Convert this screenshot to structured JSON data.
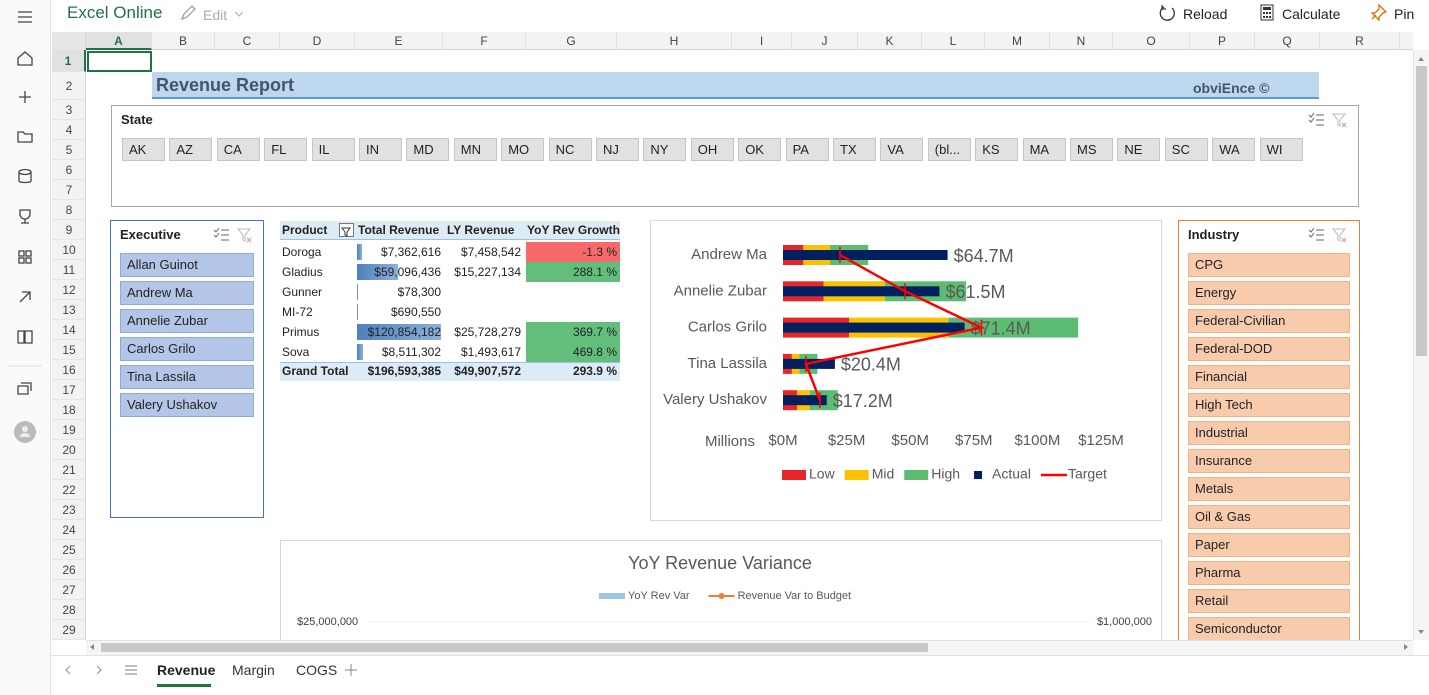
{
  "app": {
    "title": "Excel Online",
    "edit": "Edit"
  },
  "toolbar": [
    "Reload",
    "Calculate",
    "Pin"
  ],
  "columns": [
    "A",
    "B",
    "C",
    "D",
    "E",
    "F",
    "G",
    "H",
    "I",
    "J",
    "K",
    "L",
    "M",
    "N",
    "O",
    "P",
    "Q",
    "R"
  ],
  "rows": [
    1,
    2,
    3,
    4,
    5,
    6,
    7,
    8,
    9,
    10,
    11,
    12,
    13,
    14,
    15,
    16,
    17,
    18,
    19,
    20,
    21,
    22,
    23,
    24,
    25,
    26,
    27,
    28,
    29
  ],
  "report": {
    "title": "Revenue Report",
    "brand": "obviEnce ©"
  },
  "state_slicer": {
    "title": "State",
    "items": [
      "AK",
      "AZ",
      "CA",
      "FL",
      "IL",
      "IN",
      "MD",
      "MN",
      "MO",
      "NC",
      "NJ",
      "NY",
      "OH",
      "OK",
      "PA",
      "TX",
      "VA",
      "(bl...",
      "KS",
      "MA",
      "MS",
      "NE",
      "SC",
      "WA",
      "WI"
    ]
  },
  "executive_slicer": {
    "title": "Executive",
    "items": [
      "Allan Guinot",
      "Andrew Ma",
      "Annelie Zubar",
      "Carlos Grilo",
      "Tina Lassila",
      "Valery Ushakov"
    ]
  },
  "industry_slicer": {
    "title": "Industry",
    "items": [
      "CPG",
      "Energy",
      "Federal-Civilian",
      "Federal-DOD",
      "Financial",
      "High Tech",
      "Industrial",
      "Insurance",
      "Metals",
      "Oil & Gas",
      "Paper",
      "Pharma",
      "Retail",
      "Semiconductor"
    ]
  },
  "pivot": {
    "headers": [
      "Product",
      "Total Revenue",
      "LY Revenue",
      "YoY Rev Growth"
    ],
    "products": [
      "Doroga",
      "Gladius",
      "Gunner",
      "MI-72",
      "Primus",
      "Sova"
    ],
    "total_revenue": [
      7362616,
      59096436,
      78300,
      690550,
      120854182,
      8511302
    ],
    "total_revenue_labels": [
      "$7,362,616",
      "$59,096,436",
      "$78,300",
      "$690,550",
      "$120,854,182",
      "$8,511,302"
    ],
    "ly_revenue_labels": [
      "$7,458,542",
      "$15,227,134",
      null,
      null,
      "$25,728,279",
      "$1,493,617"
    ],
    "yoy_growth": [
      -1.3,
      288.1,
      null,
      null,
      369.7,
      469.8
    ],
    "yoy_growth_labels": [
      "-1.3 %",
      "288.1 %",
      null,
      null,
      "369.7 %",
      "469.8 %"
    ],
    "grand_total": {
      "label": "Grand Total",
      "total_revenue": "$196,593,385",
      "ly_revenue": "$49,907,572",
      "yoy_growth": "293.9 %"
    }
  },
  "chart_data": [
    {
      "type": "bullet",
      "categories": [
        "Andrew Ma",
        "Annelie Zubar",
        "Carlos Grilo",
        "Tina Lassila",
        "Valery Ushakov"
      ],
      "series": [
        {
          "name": "Low",
          "color": "#e8262a",
          "style": "range",
          "values": [
            8,
            16,
            26,
            3.5,
            5.5
          ]
        },
        {
          "name": "Mid",
          "color": "#ffc000",
          "style": "range",
          "values": [
            10.5,
            24,
            39,
            3,
            5
          ]
        },
        {
          "name": "High",
          "color": "#5cbd72",
          "style": "range",
          "values": [
            15,
            32,
            51,
            7,
            11
          ]
        },
        {
          "name": "Actual",
          "color": "#002060",
          "style": "bar",
          "values": [
            64.7,
            61.5,
            71.4,
            20.4,
            17.2
          ],
          "value_labels": [
            "$64.7M",
            "$61.5M",
            "$71.4M",
            "$20.4M",
            "$17.2M"
          ]
        },
        {
          "name": "Target",
          "color": "#ff0000",
          "style": "line",
          "values": [
            22.4,
            48,
            78,
            9,
            14.5
          ]
        }
      ],
      "xlabel": "Millions",
      "xlim": [
        0,
        125
      ],
      "xticks": [
        {
          "value": 0,
          "label": "$0M"
        },
        {
          "value": 25,
          "label": "$25M"
        },
        {
          "value": 50,
          "label": "$50M"
        },
        {
          "value": 75,
          "label": "$75M"
        },
        {
          "value": 100,
          "label": "$100M"
        },
        {
          "value": 125,
          "label": "$125M"
        }
      ],
      "legend": "bottom"
    },
    {
      "type": "combo",
      "title": "YoY Revenue Variance",
      "series": [
        {
          "name": "YoY Rev Var",
          "color": "#9dc3e6",
          "style": "bar"
        },
        {
          "name": "Revenue Var to Budget",
          "color": "#ed7d31",
          "style": "line",
          "axis": "y2"
        }
      ],
      "yticks": [
        {
          "value": 25000000,
          "label": "$25,000,000"
        }
      ],
      "y2ticks": [
        {
          "value": 1000000,
          "label": "$1,000,000"
        }
      ],
      "legend": "top"
    }
  ],
  "sheet_tabs": [
    "Revenue",
    "Margin",
    "COGS"
  ]
}
